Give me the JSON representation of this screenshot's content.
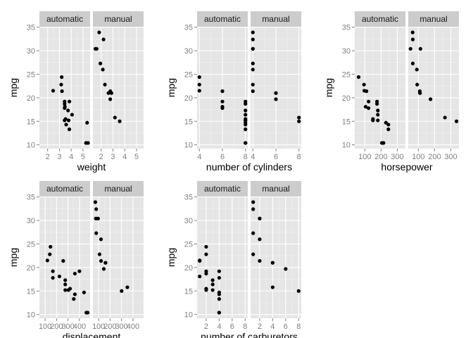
{
  "facet_labels": [
    "automatic",
    "manual"
  ],
  "chart_data": [
    {
      "type": "scatter",
      "xlabel": "weight",
      "ylabel": "mpg",
      "facets": [
        "automatic",
        "manual"
      ],
      "xlim": [
        1.3,
        5.6
      ],
      "ylim": [
        9.2,
        35.1
      ],
      "xticks": [
        2,
        3,
        4,
        5
      ],
      "yticks": [
        10,
        15,
        20,
        25,
        30,
        35
      ],
      "series": [
        {
          "facet": "automatic",
          "x": [
            3.215,
            3.44,
            3.46,
            3.57,
            3.19,
            3.15,
            3.44,
            3.44,
            4.07,
            3.73,
            3.78,
            5.25,
            5.424,
            5.345,
            2.465,
            3.52,
            3.435,
            3.84,
            3.845
          ],
          "y": [
            21.4,
            18.7,
            18.1,
            14.3,
            24.4,
            22.8,
            19.2,
            17.8,
            16.4,
            17.3,
            15.2,
            10.4,
            10.4,
            14.7,
            21.5,
            15.5,
            15.2,
            13.3,
            19.2
          ]
        },
        {
          "facet": "manual",
          "x": [
            2.62,
            2.875,
            2.32,
            2.2,
            1.615,
            1.835,
            1.935,
            2.14,
            1.513,
            3.17,
            2.77,
            3.57,
            2.78
          ],
          "y": [
            21.0,
            21.0,
            22.8,
            32.4,
            30.4,
            33.9,
            27.3,
            26.0,
            30.4,
            15.8,
            19.7,
            15.0,
            21.4
          ]
        }
      ]
    },
    {
      "type": "scatter",
      "xlabel": "number of cylinders",
      "ylabel": "mpg",
      "facets": [
        "automatic",
        "manual"
      ],
      "xlim": [
        3.8,
        8.2
      ],
      "ylim": [
        9.2,
        35.1
      ],
      "xticks": [
        4,
        6,
        8
      ],
      "yticks": [
        10,
        15,
        20,
        25,
        30,
        35
      ],
      "series": [
        {
          "facet": "automatic",
          "x": [
            6,
            8,
            6,
            8,
            4,
            4,
            6,
            6,
            8,
            8,
            8,
            8,
            8,
            8,
            4,
            8,
            8,
            8,
            8
          ],
          "y": [
            21.4,
            18.7,
            18.1,
            14.3,
            24.4,
            22.8,
            19.2,
            17.8,
            16.4,
            17.3,
            15.2,
            10.4,
            10.4,
            14.7,
            21.5,
            15.5,
            15.2,
            13.3,
            19.2
          ]
        },
        {
          "facet": "manual",
          "x": [
            6,
            6,
            4,
            4,
            4,
            4,
            4,
            4,
            4,
            8,
            6,
            8,
            4
          ],
          "y": [
            21.0,
            21.0,
            22.8,
            32.4,
            30.4,
            33.9,
            27.3,
            26.0,
            30.4,
            15.8,
            19.7,
            15.0,
            21.4
          ]
        }
      ]
    },
    {
      "type": "scatter",
      "xlabel": "horsepower",
      "ylabel": "mpg",
      "facets": [
        "automatic",
        "manual"
      ],
      "xlim": [
        38,
        350
      ],
      "ylim": [
        9.2,
        35.1
      ],
      "xticks": [
        100,
        200,
        300
      ],
      "yticks": [
        10,
        15,
        20,
        25,
        30,
        35
      ],
      "series": [
        {
          "facet": "automatic",
          "x": [
            110,
            175,
            105,
            245,
            62,
            95,
            123,
            123,
            180,
            180,
            180,
            205,
            215,
            230,
            97,
            150,
            150,
            245,
            175
          ],
          "y": [
            21.4,
            18.7,
            18.1,
            14.3,
            24.4,
            22.8,
            19.2,
            17.8,
            16.4,
            17.3,
            15.2,
            10.4,
            10.4,
            14.7,
            21.5,
            15.5,
            15.2,
            13.3,
            19.2
          ]
        },
        {
          "facet": "manual",
          "x": [
            110,
            110,
            93,
            66,
            52,
            65,
            66,
            91,
            113,
            264,
            175,
            335,
            109
          ],
          "y": [
            21.0,
            21.0,
            22.8,
            32.4,
            30.4,
            33.9,
            27.3,
            26.0,
            30.4,
            15.8,
            19.7,
            15.0,
            21.4
          ]
        }
      ]
    },
    {
      "type": "scatter",
      "xlabel": "displacement",
      "ylabel": "mpg",
      "facets": [
        "automatic",
        "manual"
      ],
      "xlim": [
        50,
        493
      ],
      "ylim": [
        9.2,
        35.1
      ],
      "xticks": [
        100,
        200,
        300,
        400
      ],
      "yticks": [
        10,
        15,
        20,
        25,
        30,
        35
      ],
      "series": [
        {
          "facet": "automatic",
          "x": [
            258,
            360,
            225,
            360,
            146.7,
            140.8,
            167.6,
            167.6,
            275.8,
            275.8,
            275.8,
            472,
            460,
            440,
            120.1,
            318,
            304,
            350,
            400
          ],
          "y": [
            21.4,
            18.7,
            18.1,
            14.3,
            24.4,
            22.8,
            19.2,
            17.8,
            16.4,
            17.3,
            15.2,
            10.4,
            10.4,
            14.7,
            21.5,
            15.5,
            15.2,
            13.3,
            19.2
          ]
        },
        {
          "facet": "manual",
          "x": [
            160,
            160,
            108,
            78.7,
            75.7,
            71.1,
            79,
            120.3,
            95.1,
            351,
            145,
            301,
            121
          ],
          "y": [
            21.0,
            21.0,
            22.8,
            32.4,
            30.4,
            33.9,
            27.3,
            26.0,
            30.4,
            15.8,
            19.7,
            15.0,
            21.4
          ]
        }
      ]
    },
    {
      "type": "scatter",
      "xlabel": "number of carburetors",
      "ylabel": "mpg",
      "facets": [
        "automatic",
        "manual"
      ],
      "xlim": [
        0.6,
        8.4
      ],
      "ylim": [
        9.2,
        35.1
      ],
      "xticks": [
        2,
        4,
        6,
        8
      ],
      "yticks": [
        10,
        15,
        20,
        25,
        30,
        35
      ],
      "series": [
        {
          "facet": "automatic",
          "x": [
            1,
            2,
            1,
            4,
            2,
            2,
            4,
            4,
            3,
            3,
            3,
            4,
            4,
            4,
            1,
            2,
            2,
            4,
            2
          ],
          "y": [
            21.4,
            18.7,
            18.1,
            14.3,
            24.4,
            22.8,
            19.2,
            17.8,
            16.4,
            17.3,
            15.2,
            10.4,
            10.4,
            14.7,
            21.5,
            15.5,
            15.2,
            13.3,
            19.2
          ]
        },
        {
          "facet": "manual",
          "x": [
            4,
            4,
            1,
            1,
            2,
            1,
            1,
            2,
            2,
            4,
            6,
            8,
            2
          ],
          "y": [
            21.0,
            21.0,
            22.8,
            32.4,
            30.4,
            33.9,
            27.3,
            26.0,
            30.4,
            15.8,
            19.7,
            15.0,
            21.4
          ]
        }
      ]
    }
  ]
}
